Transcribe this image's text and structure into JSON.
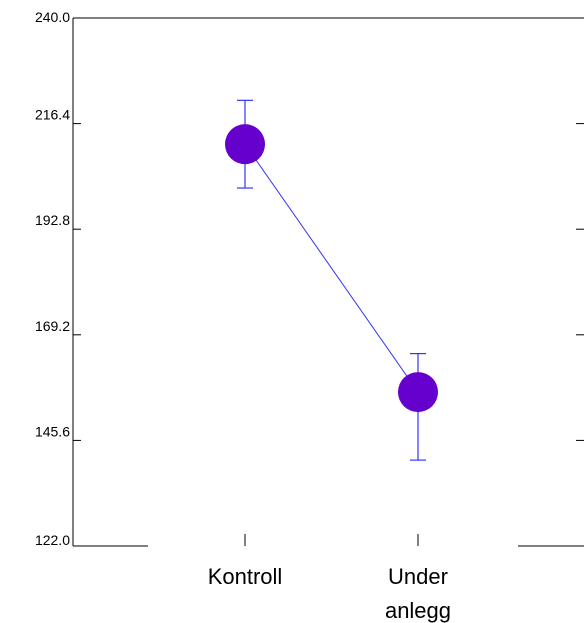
{
  "chart_data": {
    "type": "line",
    "categories": [
      "Kontroll",
      "Under\nanlegg"
    ],
    "series": [
      {
        "values": [
          211.8,
          156.4
        ],
        "error_low": [
          202.0,
          141.2
        ],
        "error_high": [
          221.6,
          165.0
        ],
        "color": "#6600cc",
        "line_color": "#3333ff"
      }
    ],
    "y_ticks": [
      "240.0",
      "216.4",
      "192.8",
      "169.2",
      "145.6",
      "122.0"
    ],
    "ylim": [
      122.0,
      240.0
    ],
    "grid": false,
    "title": "",
    "xlabel": "",
    "ylabel": ""
  }
}
